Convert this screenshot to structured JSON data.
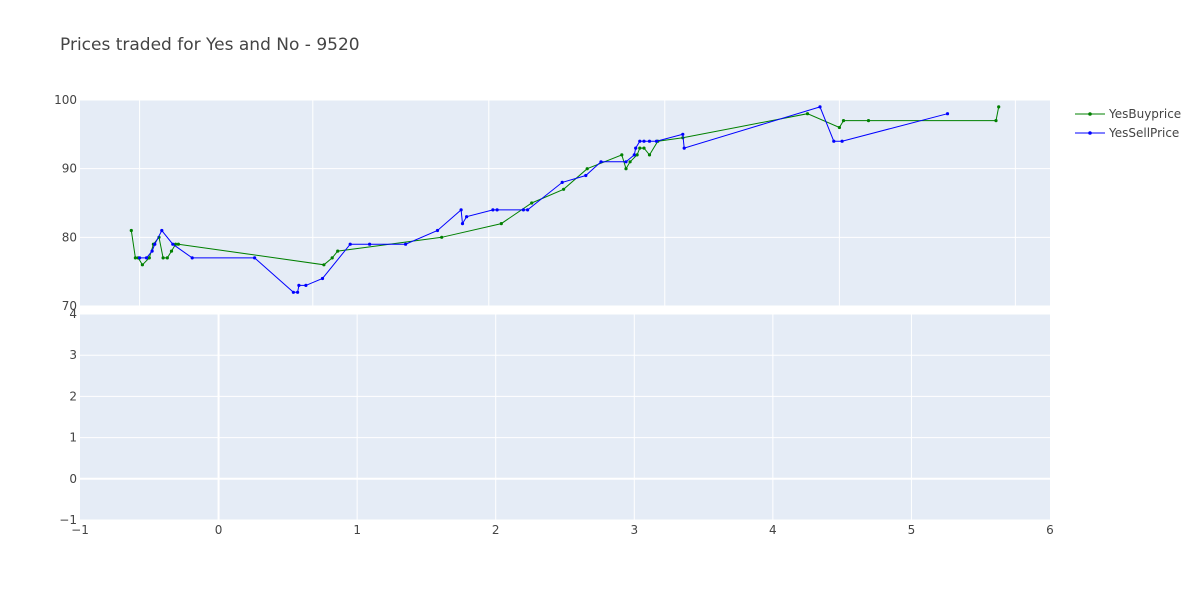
{
  "chart_data": {
    "type": "line",
    "title": "Prices traded for Yes and No - 9520",
    "legend": {
      "placement": "top-right"
    },
    "top_panel": {
      "ylim": [
        70,
        100
      ],
      "yticks": [
        70,
        80,
        90,
        100
      ],
      "x_gridlines": [
        -0.57,
        0.68,
        1.95,
        3.22,
        4.48,
        5.75
      ]
    },
    "bottom_panel": {
      "ylim": [
        -1,
        4
      ],
      "yticks": [
        -1,
        0,
        1,
        2,
        3,
        4
      ]
    },
    "xlim": [
      -1,
      6
    ],
    "xticks": [
      -1,
      0,
      1,
      2,
      3,
      4,
      5,
      6
    ],
    "series": [
      {
        "name": "YesBuyprice",
        "color": "#008000",
        "points": [
          [
            -0.63,
            81
          ],
          [
            -0.6,
            77
          ],
          [
            -0.58,
            77
          ],
          [
            -0.55,
            76
          ],
          [
            -0.5,
            77
          ],
          [
            -0.47,
            79
          ],
          [
            -0.43,
            80
          ],
          [
            -0.4,
            77
          ],
          [
            -0.37,
            77
          ],
          [
            -0.34,
            78
          ],
          [
            -0.31,
            79
          ],
          [
            -0.29,
            79
          ],
          [
            0.76,
            76
          ],
          [
            0.82,
            77
          ],
          [
            0.86,
            78
          ],
          [
            1.61,
            80
          ],
          [
            2.04,
            82
          ],
          [
            2.26,
            85
          ],
          [
            2.49,
            87
          ],
          [
            2.66,
            90
          ],
          [
            2.91,
            92
          ],
          [
            2.94,
            90
          ],
          [
            2.97,
            91
          ],
          [
            3.02,
            92
          ],
          [
            3.04,
            93
          ],
          [
            3.07,
            93
          ],
          [
            3.11,
            92
          ],
          [
            3.17,
            94
          ],
          [
            3.35,
            94.5
          ],
          [
            4.25,
            98
          ],
          [
            4.48,
            96
          ],
          [
            4.51,
            97
          ],
          [
            4.69,
            97
          ],
          [
            5.61,
            97
          ],
          [
            5.63,
            99
          ]
        ]
      },
      {
        "name": "YesSellPrice",
        "color": "#0000ff",
        "points": [
          [
            -0.57,
            77
          ],
          [
            -0.52,
            77
          ],
          [
            -0.48,
            78
          ],
          [
            -0.46,
            79
          ],
          [
            -0.41,
            81
          ],
          [
            -0.33,
            79
          ],
          [
            -0.19,
            77
          ],
          [
            0.26,
            77
          ],
          [
            0.54,
            72
          ],
          [
            0.57,
            72
          ],
          [
            0.58,
            73
          ],
          [
            0.63,
            73
          ],
          [
            0.75,
            74
          ],
          [
            0.95,
            79
          ],
          [
            1.09,
            79
          ],
          [
            1.35,
            79
          ],
          [
            1.58,
            81
          ],
          [
            1.75,
            84
          ],
          [
            1.76,
            82
          ],
          [
            1.79,
            83
          ],
          [
            1.98,
            84
          ],
          [
            2.01,
            84
          ],
          [
            2.2,
            84
          ],
          [
            2.23,
            84
          ],
          [
            2.48,
            88
          ],
          [
            2.65,
            89
          ],
          [
            2.76,
            91
          ],
          [
            2.94,
            91
          ],
          [
            3.0,
            92
          ],
          [
            3.01,
            93
          ],
          [
            3.04,
            94
          ],
          [
            3.07,
            94
          ],
          [
            3.11,
            94
          ],
          [
            3.16,
            94
          ],
          [
            3.35,
            95
          ],
          [
            3.36,
            93
          ],
          [
            4.34,
            99
          ],
          [
            4.44,
            94
          ],
          [
            4.5,
            94
          ],
          [
            5.26,
            98
          ]
        ]
      }
    ]
  }
}
